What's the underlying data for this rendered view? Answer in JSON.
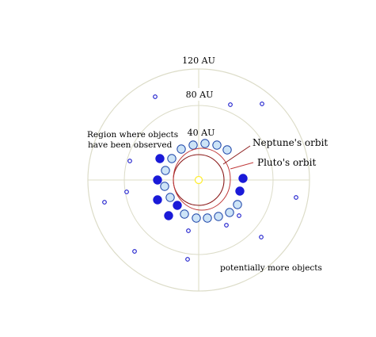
{
  "rings": [
    {
      "radius_au": 40,
      "label": "40 AU"
    },
    {
      "radius_au": 80,
      "label": "80 AU"
    },
    {
      "radius_au": 120,
      "label": "120 AU"
    }
  ],
  "labels": {
    "region_line1": "Region where objects",
    "region_line2": "have been observed",
    "neptune": "Neptune's orbit",
    "pluto": "Pluto's orbit",
    "more": "potentially more objects"
  },
  "colors": {
    "grid": "#dcdcc8",
    "axis": "#e3e3d0",
    "sun": "#ffee33",
    "neptune_orbit": "#8b1a1a",
    "pluto_orbit": "#c03a3a",
    "kuiper_fill": "#cde4f7",
    "kuiper_stroke": "#1c44a8",
    "dark_object": "#1a1ad8",
    "small_object": "#1a1acc"
  },
  "icons": {
    "sun": "sun-icon",
    "kuiper_object": "kuiper-belt-object-icon",
    "distant_object": "distant-object-icon"
  }
}
